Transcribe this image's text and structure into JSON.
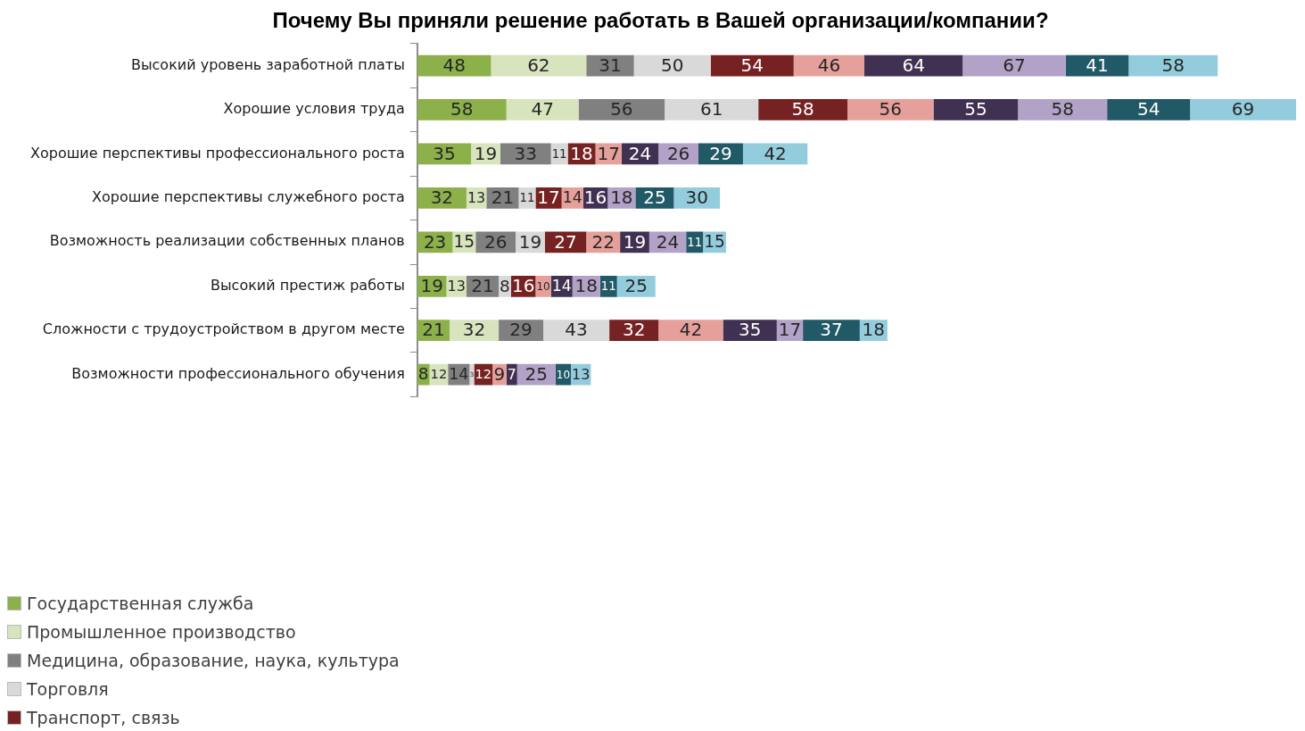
{
  "chart_data": {
    "type": "bar",
    "orientation": "horizontal",
    "stacked": true,
    "data_labels": true,
    "title": "Почему Вы приняли решение работать в Вашей организации/компании?",
    "categories": [
      "Высокий уровень заработной платы",
      "Хорошие условия труда",
      "Хорошие перспективы профессионального роста",
      "Хорошие перспективы служебного роста",
      "Возможность реализации собственных планов",
      "Высокий престиж работы",
      "Сложности с трудоустройством в другом месте",
      "Возможности профессионального обучения"
    ],
    "legend": "bottom left",
    "grid": false,
    "series": [
      {
        "name": "Государственная служба",
        "color": "#8cb04a",
        "values": [
          48,
          58,
          35,
          32,
          23,
          19,
          21,
          8
        ]
      },
      {
        "name": "Промышленное производство",
        "color": "#d7e4bd",
        "values": [
          62,
          47,
          19,
          13,
          15,
          13,
          32,
          12
        ]
      },
      {
        "name": "Медицина, образование, наука, культура",
        "color": "#808080",
        "values": [
          31,
          56,
          33,
          21,
          26,
          21,
          29,
          14
        ]
      },
      {
        "name": "Торговля",
        "color": "#d9d9d9",
        "values": [
          50,
          61,
          11,
          11,
          19,
          8,
          43,
          3
        ]
      },
      {
        "name": "Транспорт, связь",
        "color": "#772222",
        "values": [
          54,
          58,
          18,
          17,
          27,
          16,
          32,
          12
        ]
      },
      {
        "color": "#e6a09b",
        "values": [
          46,
          56,
          17,
          14,
          22,
          10,
          42,
          9
        ]
      },
      {
        "color": "#403152",
        "values": [
          64,
          55,
          24,
          16,
          19,
          14,
          35,
          7
        ]
      },
      {
        "color": "#b3a2c7",
        "values": [
          67,
          58,
          26,
          18,
          24,
          18,
          17,
          25
        ]
      },
      {
        "color": "#215967",
        "values": [
          41,
          54,
          29,
          25,
          11,
          11,
          37,
          10
        ]
      },
      {
        "color": "#93cddd",
        "values": [
          58,
          69,
          42,
          30,
          15,
          25,
          18,
          13
        ]
      }
    ]
  }
}
